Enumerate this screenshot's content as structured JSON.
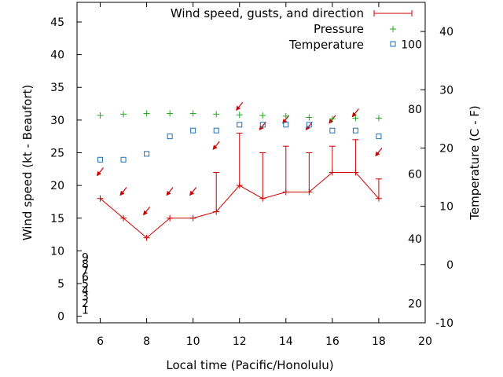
{
  "chart_data": {
    "type": "line",
    "xlabel": "Local time (Pacific/Honolulu)",
    "ylabel": "Wind speed (kt - Beaufort)",
    "y2label": "Temperature (C - F)",
    "xlim": [
      5,
      20
    ],
    "ylim": [
      -1,
      48
    ],
    "y2lim": [
      -10,
      45
    ],
    "x_ticks": [
      6,
      8,
      10,
      12,
      14,
      16,
      18,
      20
    ],
    "y_ticks": [
      0,
      5,
      10,
      15,
      20,
      25,
      30,
      35,
      40,
      45
    ],
    "y2_ticks": [
      -10,
      0,
      10,
      20,
      30,
      40
    ],
    "beaufort_labels": [
      {
        "value": 1,
        "label": "1"
      },
      {
        "value": 2,
        "label": "2"
      },
      {
        "value": 3,
        "label": "3"
      },
      {
        "value": 4,
        "label": "4"
      },
      {
        "value": 5,
        "label": "5"
      },
      {
        "value": 6,
        "label": "6"
      },
      {
        "value": 7,
        "label": "7"
      },
      {
        "value": 8,
        "label": "8"
      },
      {
        "value": 9,
        "label": "9"
      }
    ],
    "fahrenheit_labels": [
      {
        "value": 20,
        "label": "20"
      },
      {
        "value": 40,
        "label": "40"
      },
      {
        "value": 60,
        "label": "60"
      },
      {
        "value": 80,
        "label": "80"
      },
      {
        "value": 100,
        "label": "100"
      }
    ],
    "legend": {
      "wind": "Wind speed, gusts, and direction",
      "pressure": "Pressure",
      "temperature": "Temperature"
    },
    "colors": {
      "wind": "#cc0000",
      "arrow": "#cc0000",
      "pressure": "#22aa22",
      "temperature": "#1f6fb5"
    },
    "wind": [
      {
        "x": 6,
        "speed": 18,
        "gust": 18,
        "dir": 45
      },
      {
        "x": 7,
        "speed": 15,
        "gust": 15,
        "dir": 45
      },
      {
        "x": 8,
        "speed": 12,
        "gust": 12,
        "dir": 45
      },
      {
        "x": 9,
        "speed": 15,
        "gust": 15,
        "dir": 45
      },
      {
        "x": 10,
        "speed": 15,
        "gust": 15,
        "dir": 45
      },
      {
        "x": 11,
        "speed": 16,
        "gust": 22,
        "dir": 45
      },
      {
        "x": 12,
        "speed": 20,
        "gust": 28,
        "dir": 45
      },
      {
        "x": 13,
        "speed": 18,
        "gust": 25,
        "dir": 45
      },
      {
        "x": 14,
        "speed": 19,
        "gust": 26,
        "dir": 45
      },
      {
        "x": 15,
        "speed": 19,
        "gust": 25,
        "dir": 45
      },
      {
        "x": 16,
        "speed": 22,
        "gust": 26,
        "dir": 45
      },
      {
        "x": 17,
        "speed": 22,
        "gust": 27,
        "dir": 45
      },
      {
        "x": 18,
        "speed": 18,
        "gust": 21,
        "dir": 45
      }
    ],
    "arrows": [
      {
        "x": 6,
        "y": 22
      },
      {
        "x": 7,
        "y": 19
      },
      {
        "x": 8,
        "y": 16
      },
      {
        "x": 9,
        "y": 19
      },
      {
        "x": 10,
        "y": 19
      },
      {
        "x": 11,
        "y": 26
      },
      {
        "x": 12,
        "y": 32
      },
      {
        "x": 13,
        "y": 29
      },
      {
        "x": 14,
        "y": 30
      },
      {
        "x": 15,
        "y": 29
      },
      {
        "x": 16,
        "y": 30
      },
      {
        "x": 17,
        "y": 31
      },
      {
        "x": 18,
        "y": 25
      }
    ],
    "pressure": [
      {
        "x": 6,
        "y": 30.7
      },
      {
        "x": 7,
        "y": 30.9
      },
      {
        "x": 8,
        "y": 31.0
      },
      {
        "x": 9,
        "y": 31.0
      },
      {
        "x": 10,
        "y": 31.0
      },
      {
        "x": 11,
        "y": 30.9
      },
      {
        "x": 12,
        "y": 30.8
      },
      {
        "x": 13,
        "y": 30.7
      },
      {
        "x": 14,
        "y": 30.6
      },
      {
        "x": 15,
        "y": 30.4
      },
      {
        "x": 16,
        "y": 30.2
      },
      {
        "x": 17,
        "y": 30.3
      },
      {
        "x": 18,
        "y": 30.3
      }
    ],
    "temperature": [
      {
        "x": 6,
        "y": 18.0
      },
      {
        "x": 7,
        "y": 18.0
      },
      {
        "x": 8,
        "y": 19.0
      },
      {
        "x": 9,
        "y": 22.0
      },
      {
        "x": 10,
        "y": 23.0
      },
      {
        "x": 11,
        "y": 23.0
      },
      {
        "x": 12,
        "y": 24.0
      },
      {
        "x": 13,
        "y": 24.0
      },
      {
        "x": 14,
        "y": 24.0
      },
      {
        "x": 15,
        "y": 24.0
      },
      {
        "x": 16,
        "y": 23.0
      },
      {
        "x": 17,
        "y": 23.0
      },
      {
        "x": 18,
        "y": 22.0
      }
    ]
  }
}
